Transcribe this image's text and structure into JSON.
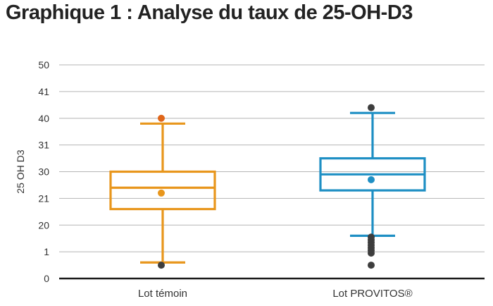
{
  "chart_data": {
    "type": "boxplot",
    "title": "Graphique 1 : Analyse du taux de 25-OH-D3",
    "ylabel": "25 OH D3",
    "xlabel": "",
    "y_ticks": [
      "0",
      "1",
      "20",
      "21",
      "30",
      "31",
      "40",
      "41",
      "50"
    ],
    "grid": true,
    "categories": [
      "Lot témoin",
      "Lot PROVITOS®"
    ],
    "series": [
      {
        "category": "Lot témoin",
        "color": "#E8961C",
        "whisker_low": 0.6,
        "q1": 2.6,
        "median": 3.4,
        "q3": 4.0,
        "whisker_high": 5.8,
        "mean": 3.2,
        "outliers": [
          {
            "value": 6.0,
            "color": "#E0661A"
          },
          {
            "value": 0.5,
            "color": "#3d3d3d"
          }
        ]
      },
      {
        "category": "Lot PROVITOS®",
        "color": "#1E8FC4",
        "whisker_low": 1.6,
        "q1": 3.3,
        "median": 3.9,
        "q3": 4.5,
        "whisker_high": 6.2,
        "mean": 3.7,
        "outliers": [
          {
            "value": 6.4,
            "color": "#3d3d3d"
          },
          {
            "value": 1.55,
            "color": "#3d3d3d"
          },
          {
            "value": 1.45,
            "color": "#3d3d3d"
          },
          {
            "value": 1.35,
            "color": "#3d3d3d"
          },
          {
            "value": 1.25,
            "color": "#3d3d3d"
          },
          {
            "value": 1.15,
            "color": "#3d3d3d"
          },
          {
            "value": 1.05,
            "color": "#3d3d3d"
          },
          {
            "value": 0.95,
            "color": "#3d3d3d"
          },
          {
            "value": 0.5,
            "color": "#3d3d3d"
          }
        ]
      }
    ]
  }
}
